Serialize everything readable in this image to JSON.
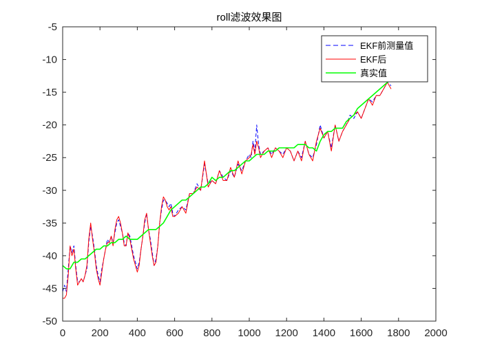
{
  "chart_data": {
    "type": "line",
    "title": "roll滤波效果图",
    "xlabel": "",
    "ylabel": "",
    "xlim": [
      0,
      2000
    ],
    "ylim": [
      -50,
      -5
    ],
    "x_ticks": [
      0,
      200,
      400,
      600,
      800,
      1000,
      1200,
      1400,
      1600,
      1800,
      2000
    ],
    "x_tick_labels": [
      "0",
      "200",
      "400",
      "600",
      "800",
      "1000",
      "1200",
      "1400",
      "1600",
      "1800",
      "2000"
    ],
    "y_ticks": [
      -50,
      -45,
      -40,
      -35,
      -30,
      -25,
      -20,
      -15,
      -10,
      -5
    ],
    "y_tick_labels": [
      "-50",
      "-45",
      "-40",
      "-35",
      "-30",
      "-25",
      "-20",
      "-15",
      "-10",
      "-5"
    ],
    "grid": false,
    "legend_position": "top-right",
    "series": [
      {
        "name": "EKF前测量值",
        "color": "#0000ff",
        "style": "dashed",
        "x": [
          0,
          10,
          20,
          30,
          40,
          50,
          60,
          70,
          80,
          90,
          100,
          110,
          120,
          130,
          140,
          150,
          160,
          170,
          180,
          190,
          200,
          210,
          220,
          230,
          240,
          250,
          260,
          270,
          280,
          290,
          300,
          310,
          320,
          330,
          340,
          350,
          360,
          370,
          380,
          390,
          400,
          410,
          420,
          430,
          440,
          450,
          460,
          470,
          480,
          490,
          500,
          510,
          520,
          530,
          540,
          550,
          560,
          570,
          580,
          590,
          600,
          620,
          640,
          660,
          680,
          700,
          720,
          740,
          760,
          780,
          800,
          820,
          840,
          860,
          880,
          900,
          920,
          940,
          960,
          980,
          1000,
          1010,
          1020,
          1030,
          1040,
          1050,
          1060,
          1080,
          1100,
          1120,
          1140,
          1160,
          1180,
          1200,
          1220,
          1240,
          1260,
          1280,
          1300,
          1320,
          1340,
          1360,
          1380,
          1400,
          1420,
          1440,
          1460,
          1480,
          1500,
          1520,
          1540,
          1560,
          1580,
          1600,
          1620,
          1640,
          1660,
          1680,
          1700,
          1720,
          1740,
          1760
        ],
        "y": [
          -45.5,
          -44.5,
          -45.5,
          -42.0,
          -38.5,
          -39.5,
          -38.5,
          -41.5,
          -44.0,
          -44.0,
          -43.5,
          -44.0,
          -43.0,
          -42.0,
          -38.0,
          -35.5,
          -37.0,
          -39.0,
          -41.5,
          -43.0,
          -44.0,
          -42.0,
          -40.5,
          -39.0,
          -37.5,
          -38.0,
          -37.0,
          -38.0,
          -36.5,
          -35.0,
          -34.5,
          -35.5,
          -36.5,
          -38.0,
          -38.5,
          -36.5,
          -37.0,
          -38.5,
          -40.0,
          -41.0,
          -42.0,
          -41.0,
          -39.0,
          -37.0,
          -35.0,
          -33.5,
          -36.0,
          -37.5,
          -39.5,
          -41.5,
          -40.5,
          -38.5,
          -35.0,
          -33.0,
          -31.5,
          -31.5,
          -32.0,
          -32.5,
          -32.0,
          -33.5,
          -34.0,
          -33.0,
          -32.5,
          -33.0,
          -30.5,
          -30.5,
          -29.0,
          -30.0,
          -26.0,
          -29.0,
          -28.5,
          -29.0,
          -27.0,
          -28.0,
          -28.5,
          -27.0,
          -28.0,
          -26.0,
          -27.0,
          -25.5,
          -24.5,
          -25.0,
          -22.5,
          -24.0,
          -20.0,
          -23.0,
          -24.5,
          -24.0,
          -23.5,
          -24.5,
          -23.5,
          -24.0,
          -24.5,
          -23.5,
          -24.0,
          -25.5,
          -24.0,
          -25.0,
          -22.5,
          -24.5,
          -25.0,
          -23.0,
          -20.0,
          -22.0,
          -21.0,
          -23.5,
          -20.0,
          -22.5,
          -21.0,
          -20.0,
          -18.5,
          -19.0,
          -18.0,
          -19.0,
          -17.5,
          -16.0,
          -16.5,
          -15.5,
          -15.5,
          -14.5,
          -13.5,
          -14.0
        ]
      },
      {
        "name": "EKF后",
        "color": "#ff0000",
        "style": "solid",
        "x": [
          0,
          10,
          20,
          30,
          40,
          50,
          60,
          70,
          80,
          90,
          100,
          110,
          120,
          130,
          140,
          150,
          160,
          170,
          180,
          190,
          200,
          210,
          220,
          230,
          240,
          250,
          260,
          270,
          280,
          290,
          300,
          310,
          320,
          330,
          340,
          350,
          360,
          370,
          380,
          390,
          400,
          410,
          420,
          430,
          440,
          450,
          460,
          470,
          480,
          490,
          500,
          510,
          520,
          530,
          540,
          550,
          560,
          570,
          580,
          590,
          600,
          620,
          640,
          660,
          680,
          700,
          720,
          740,
          760,
          780,
          800,
          820,
          840,
          860,
          880,
          900,
          920,
          940,
          960,
          980,
          1000,
          1010,
          1020,
          1030,
          1040,
          1050,
          1060,
          1080,
          1100,
          1120,
          1140,
          1160,
          1180,
          1200,
          1220,
          1240,
          1260,
          1280,
          1300,
          1320,
          1340,
          1360,
          1380,
          1400,
          1420,
          1440,
          1460,
          1480,
          1500,
          1520,
          1540,
          1560,
          1580,
          1600,
          1620,
          1640,
          1660,
          1680,
          1700,
          1720,
          1740,
          1760
        ],
        "y": [
          -46.5,
          -46.5,
          -46.0,
          -43.0,
          -38.5,
          -40.0,
          -39.0,
          -42.0,
          -44.5,
          -44.0,
          -43.5,
          -44.0,
          -43.0,
          -41.5,
          -37.5,
          -35.0,
          -37.5,
          -39.5,
          -42.0,
          -43.5,
          -44.5,
          -42.5,
          -40.5,
          -39.0,
          -38.0,
          -38.0,
          -37.0,
          -38.5,
          -36.0,
          -34.5,
          -34.0,
          -35.0,
          -36.5,
          -38.5,
          -38.5,
          -36.5,
          -37.5,
          -39.0,
          -40.5,
          -41.5,
          -42.5,
          -41.5,
          -39.0,
          -37.0,
          -34.5,
          -33.5,
          -36.0,
          -38.0,
          -40.0,
          -41.5,
          -41.0,
          -38.5,
          -35.0,
          -32.5,
          -31.0,
          -31.5,
          -32.5,
          -33.0,
          -32.5,
          -34.0,
          -34.0,
          -33.5,
          -32.5,
          -33.5,
          -30.5,
          -30.5,
          -29.5,
          -30.0,
          -25.5,
          -29.5,
          -28.5,
          -29.0,
          -27.0,
          -28.5,
          -28.5,
          -26.5,
          -28.0,
          -25.5,
          -27.5,
          -25.5,
          -25.0,
          -24.5,
          -23.0,
          -24.5,
          -22.5,
          -23.5,
          -25.0,
          -24.0,
          -23.5,
          -25.0,
          -23.5,
          -24.0,
          -25.0,
          -23.5,
          -24.0,
          -25.5,
          -24.0,
          -25.5,
          -22.5,
          -24.5,
          -25.5,
          -22.5,
          -20.5,
          -22.0,
          -21.0,
          -24.0,
          -20.0,
          -22.5,
          -21.0,
          -20.0,
          -19.0,
          -18.5,
          -18.0,
          -19.0,
          -17.5,
          -16.0,
          -17.0,
          -15.5,
          -15.5,
          -14.5,
          -13.5,
          -14.5
        ]
      },
      {
        "name": "真实值",
        "color": "#00ff00",
        "style": "solid",
        "x": [
          0,
          20,
          40,
          60,
          80,
          100,
          120,
          140,
          160,
          180,
          200,
          220,
          240,
          260,
          280,
          300,
          320,
          340,
          360,
          380,
          400,
          420,
          440,
          460,
          480,
          500,
          520,
          540,
          560,
          580,
          600,
          620,
          640,
          660,
          680,
          700,
          720,
          740,
          760,
          780,
          800,
          820,
          840,
          860,
          880,
          900,
          920,
          940,
          960,
          980,
          1000,
          1020,
          1040,
          1060,
          1080,
          1100,
          1120,
          1140,
          1160,
          1180,
          1200,
          1220,
          1240,
          1260,
          1280,
          1300,
          1320,
          1340,
          1360,
          1380,
          1400,
          1420,
          1440,
          1460,
          1480,
          1500,
          1520,
          1540,
          1560,
          1580,
          1600,
          1620,
          1640,
          1660,
          1680,
          1700,
          1720,
          1740,
          1760
        ],
        "y": [
          -41.5,
          -42.0,
          -42.0,
          -41.0,
          -41.0,
          -40.5,
          -40.5,
          -40.0,
          -39.5,
          -39.0,
          -39.0,
          -38.5,
          -38.5,
          -38.0,
          -38.0,
          -37.5,
          -37.5,
          -37.0,
          -37.5,
          -37.5,
          -37.5,
          -37.0,
          -36.5,
          -36.0,
          -36.0,
          -36.0,
          -35.5,
          -35.0,
          -34.0,
          -33.0,
          -32.5,
          -32.0,
          -31.5,
          -31.5,
          -31.0,
          -30.5,
          -30.0,
          -29.5,
          -29.5,
          -29.0,
          -28.0,
          -28.5,
          -28.0,
          -28.0,
          -27.5,
          -27.0,
          -27.0,
          -26.5,
          -26.0,
          -25.5,
          -25.5,
          -25.0,
          -24.5,
          -24.5,
          -24.5,
          -24.0,
          -24.0,
          -24.0,
          -23.5,
          -23.5,
          -23.5,
          -23.5,
          -23.5,
          -23.0,
          -23.0,
          -23.0,
          -23.5,
          -23.5,
          -24.0,
          -22.5,
          -21.5,
          -21.0,
          -21.0,
          -20.5,
          -20.5,
          -20.5,
          -19.5,
          -19.0,
          -18.5,
          -17.5,
          -17.0,
          -16.5,
          -16.0,
          -15.5,
          -15.0,
          -14.5,
          -14.0,
          -13.5,
          -13.0
        ]
      }
    ]
  }
}
